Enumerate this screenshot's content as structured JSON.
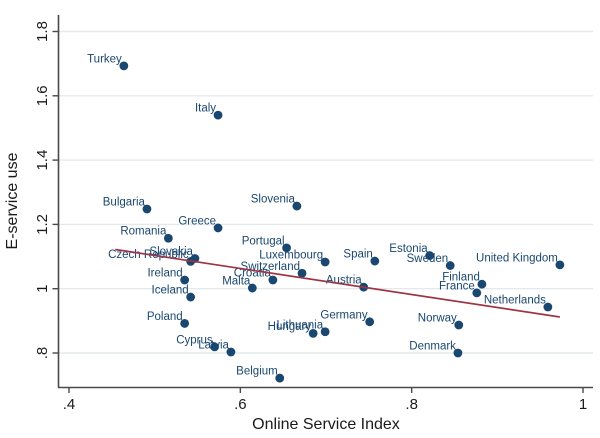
{
  "chart_data": {
    "type": "scatter",
    "title": "",
    "xlabel": "Online Service Index",
    "ylabel": "E-service use",
    "xlim": [
      0.387,
      1.011
    ],
    "ylim": [
      0.694,
      1.851
    ],
    "grid": "horizontal-only",
    "legend": "none",
    "xticks": [
      {
        "value": 0.4,
        "label": ".4"
      },
      {
        "value": 0.6,
        "label": ".6"
      },
      {
        "value": 0.8,
        "label": ".8"
      },
      {
        "value": 1.0,
        "label": "1"
      }
    ],
    "yticks": [
      {
        "value": 0.8,
        "label": ".8"
      },
      {
        "value": 1.0,
        "label": "1"
      },
      {
        "value": 1.2,
        "label": "1.2"
      },
      {
        "value": 1.4,
        "label": "1.4"
      },
      {
        "value": 1.6,
        "label": "1.6"
      },
      {
        "value": 1.8,
        "label": "1.8"
      }
    ],
    "points": [
      {
        "label": "Turkey",
        "x": 0.464,
        "y": 1.693
      },
      {
        "label": "Italy",
        "x": 0.574,
        "y": 1.54
      },
      {
        "label": "Slovenia",
        "x": 0.666,
        "y": 1.257
      },
      {
        "label": "Bulgaria",
        "x": 0.491,
        "y": 1.248
      },
      {
        "label": "Greece",
        "x": 0.574,
        "y": 1.189
      },
      {
        "label": "Romania",
        "x": 0.516,
        "y": 1.157
      },
      {
        "label": "Portugal",
        "x": 0.654,
        "y": 1.127
      },
      {
        "label": "Estonia",
        "x": 0.821,
        "y": 1.103
      },
      {
        "label": "Slovakia",
        "x": 0.547,
        "y": 1.094
      },
      {
        "label": "Czech Republic",
        "x": 0.542,
        "y": 1.085
      },
      {
        "label": "Spain",
        "x": 0.757,
        "y": 1.086
      },
      {
        "label": "Luxembourg",
        "x": 0.699,
        "y": 1.083
      },
      {
        "label": "United Kingdom",
        "x": 0.973,
        "y": 1.074
      },
      {
        "label": "Sweden",
        "x": 0.845,
        "y": 1.072
      },
      {
        "label": "Switzerland",
        "x": 0.672,
        "y": 1.048
      },
      {
        "label": "Croatia",
        "x": 0.638,
        "y": 1.027
      },
      {
        "label": "Ireland",
        "x": 0.535,
        "y": 1.027
      },
      {
        "label": "Finland",
        "x": 0.882,
        "y": 1.014
      },
      {
        "label": "Austria",
        "x": 0.744,
        "y": 1.005
      },
      {
        "label": "Malta",
        "x": 0.614,
        "y": 1.002
      },
      {
        "label": "France",
        "x": 0.876,
        "y": 0.987
      },
      {
        "label": "Iceland",
        "x": 0.542,
        "y": 0.974
      },
      {
        "label": "Netherlands",
        "x": 0.959,
        "y": 0.943
      },
      {
        "label": "Germany",
        "x": 0.751,
        "y": 0.897
      },
      {
        "label": "Poland",
        "x": 0.535,
        "y": 0.892
      },
      {
        "label": "Norway",
        "x": 0.855,
        "y": 0.887
      },
      {
        "label": "Lithuania",
        "x": 0.699,
        "y": 0.866
      },
      {
        "label": "Hungary",
        "x": 0.685,
        "y": 0.861
      },
      {
        "label": "Cyprus",
        "x": 0.57,
        "y": 0.819
      },
      {
        "label": "Latvia",
        "x": 0.589,
        "y": 0.803
      },
      {
        "label": "Denmark",
        "x": 0.854,
        "y": 0.8
      },
      {
        "label": "Belgium",
        "x": 0.646,
        "y": 0.722
      }
    ],
    "trend_line": {
      "x1": 0.454,
      "y1": 1.122,
      "x2": 0.973,
      "y2": 0.912
    },
    "colors": {
      "marker": "#1a476f",
      "marker_label": "#1a476f",
      "trend": "#9d3545",
      "grid": "#e4eaec",
      "axis": "#4a4a4a",
      "tick_text": "#1a1a1a",
      "background": "#ffffff"
    }
  }
}
